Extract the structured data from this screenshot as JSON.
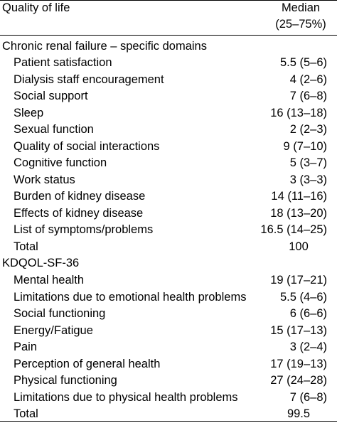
{
  "header": {
    "col1": "Quality of life",
    "col2_line1": "Median",
    "col2_line2": "(25–75%)"
  },
  "sections": [
    {
      "title": "Chronic renal failure – specific domains",
      "rows": [
        {
          "label": "Patient satisfaction",
          "value": "5.5 (5–6)"
        },
        {
          "label": "Dialysis staff encouragement",
          "value": "4 (2–6)"
        },
        {
          "label": "Social support",
          "value": "7 (6–8)"
        },
        {
          "label": "Sleep",
          "value": "16 (13–18)"
        },
        {
          "label": "Sexual function",
          "value": "2 (2–3)"
        },
        {
          "label": "Quality of social interactions",
          "value": "9 (7–10)"
        },
        {
          "label": "Cognitive function",
          "value": "5 (3–7)"
        },
        {
          "label": "Work status",
          "value": "3 (3–3)"
        },
        {
          "label": "Burden of kidney disease",
          "value": "14 (11–16)"
        },
        {
          "label": "Effects of kidney disease",
          "value": "18 (13–20)"
        },
        {
          "label": "List of symptoms/problems",
          "value": "16.5 (14–25)"
        }
      ],
      "total": {
        "label": "Total",
        "value": "100"
      }
    },
    {
      "title": "KDQOL-SF-36",
      "rows": [
        {
          "label": "Mental health",
          "value": "19 (17–21)"
        },
        {
          "label": "Limitations due to emotional health problems",
          "value": "5.5 (4–6)"
        },
        {
          "label": "Social functioning",
          "value": "6 (6–6)"
        },
        {
          "label": "Energy/Fatigue",
          "value": "15 (17–13)"
        },
        {
          "label": "Pain",
          "value": "3 (2–4)"
        },
        {
          "label": "Perception of general health",
          "value": "17 (19–13)"
        },
        {
          "label": "Physical functioning",
          "value": "27 (24–28)"
        },
        {
          "label": "Limitations due to physical health problems",
          "value": "7 (6–8)"
        }
      ],
      "total": {
        "label": "Total",
        "value": "99.5"
      }
    }
  ]
}
